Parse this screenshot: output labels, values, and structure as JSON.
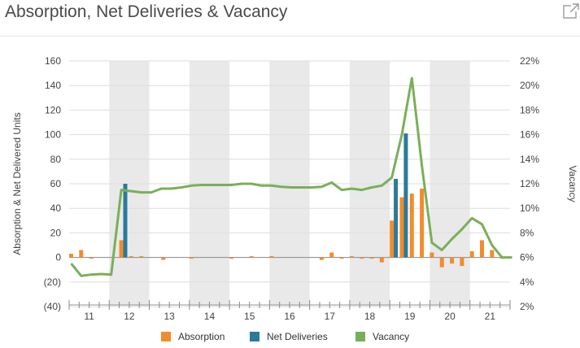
{
  "header": {
    "title": "Absorption, Net Deliveries & Vacancy",
    "open_icon": "external-link-icon"
  },
  "colors": {
    "absorption": "#f28c2c",
    "net_deliveries": "#2a7b9b",
    "vacancy": "#7aaf59",
    "band": "#e9e9e9",
    "grid": "#dedede",
    "axis_text": "#444444"
  },
  "chart_data": {
    "type": "bar",
    "categories": [
      "11",
      "12",
      "13",
      "14",
      "15",
      "16",
      "17",
      "18",
      "19",
      "20",
      "21"
    ],
    "shaded_periods": [
      "12",
      "14",
      "16",
      "18",
      "20"
    ],
    "y_left": {
      "label": "Absorption & Net Delivered Units",
      "ticks": [
        "160",
        "140",
        "120",
        "100",
        "80",
        "60",
        "40",
        "20",
        "0",
        "(20)",
        "(40)"
      ],
      "range": [
        -40,
        160
      ]
    },
    "y_right": {
      "label": "Vacancy",
      "ticks": [
        "22%",
        "20%",
        "18%",
        "16%",
        "14%",
        "12%",
        "10%",
        "8%",
        "6%",
        "4%",
        "2%"
      ],
      "range": [
        2,
        22
      ]
    },
    "grid": true,
    "legend_position": "bottom",
    "series": [
      {
        "name": "Absorption",
        "type": "bar",
        "axis": "left",
        "points": [
          {
            "t": 10.55,
            "v": 3
          },
          {
            "t": 10.8,
            "v": 6
          },
          {
            "t": 11.05,
            "v": -1
          },
          {
            "t": 11.8,
            "v": 14
          },
          {
            "t": 12.05,
            "v": 1
          },
          {
            "t": 12.3,
            "v": 1
          },
          {
            "t": 12.85,
            "v": -2
          },
          {
            "t": 13.55,
            "v": -1
          },
          {
            "t": 14.55,
            "v": -1
          },
          {
            "t": 15.05,
            "v": 1
          },
          {
            "t": 15.55,
            "v": 1
          },
          {
            "t": 16.8,
            "v": -2
          },
          {
            "t": 17.05,
            "v": 4
          },
          {
            "t": 17.3,
            "v": -1
          },
          {
            "t": 17.55,
            "v": 1
          },
          {
            "t": 17.8,
            "v": -1
          },
          {
            "t": 18.05,
            "v": -1
          },
          {
            "t": 18.3,
            "v": -4
          },
          {
            "t": 18.55,
            "v": 30
          },
          {
            "t": 18.8,
            "v": 49
          },
          {
            "t": 19.05,
            "v": 52
          },
          {
            "t": 19.3,
            "v": 56
          },
          {
            "t": 19.55,
            "v": 4
          },
          {
            "t": 19.8,
            "v": -8
          },
          {
            "t": 20.05,
            "v": -5
          },
          {
            "t": 20.3,
            "v": -7
          },
          {
            "t": 20.55,
            "v": 5
          },
          {
            "t": 20.8,
            "v": 14
          },
          {
            "t": 21.05,
            "v": 6
          },
          {
            "t": 21.3,
            "v": -1
          }
        ]
      },
      {
        "name": "Net Deliveries",
        "type": "bar",
        "axis": "left",
        "points": [
          {
            "t": 11.9,
            "v": 60
          },
          {
            "t": 18.65,
            "v": 64
          },
          {
            "t": 18.9,
            "v": 101
          }
        ]
      },
      {
        "name": "Vacancy",
        "type": "line",
        "axis": "right",
        "points": [
          {
            "t": 10.55,
            "v": 5.5
          },
          {
            "t": 10.8,
            "v": 4.5
          },
          {
            "t": 11.05,
            "v": 4.6
          },
          {
            "t": 11.3,
            "v": 4.65
          },
          {
            "t": 11.55,
            "v": 4.6
          },
          {
            "t": 11.8,
            "v": 11.5
          },
          {
            "t": 12.05,
            "v": 11.4
          },
          {
            "t": 12.3,
            "v": 11.3
          },
          {
            "t": 12.55,
            "v": 11.3
          },
          {
            "t": 12.8,
            "v": 11.6
          },
          {
            "t": 13.05,
            "v": 11.6
          },
          {
            "t": 13.3,
            "v": 11.7
          },
          {
            "t": 13.55,
            "v": 11.85
          },
          {
            "t": 13.8,
            "v": 11.9
          },
          {
            "t": 14.05,
            "v": 11.9
          },
          {
            "t": 14.3,
            "v": 11.9
          },
          {
            "t": 14.55,
            "v": 11.9
          },
          {
            "t": 14.8,
            "v": 12.0
          },
          {
            "t": 15.05,
            "v": 12.0
          },
          {
            "t": 15.3,
            "v": 11.85
          },
          {
            "t": 15.55,
            "v": 11.85
          },
          {
            "t": 15.8,
            "v": 11.75
          },
          {
            "t": 16.05,
            "v": 11.7
          },
          {
            "t": 16.3,
            "v": 11.7
          },
          {
            "t": 16.55,
            "v": 11.7
          },
          {
            "t": 16.8,
            "v": 11.75
          },
          {
            "t": 17.05,
            "v": 12.1
          },
          {
            "t": 17.3,
            "v": 11.5
          },
          {
            "t": 17.55,
            "v": 11.6
          },
          {
            "t": 17.8,
            "v": 11.5
          },
          {
            "t": 18.05,
            "v": 11.7
          },
          {
            "t": 18.3,
            "v": 11.85
          },
          {
            "t": 18.55,
            "v": 12.5
          },
          {
            "t": 18.8,
            "v": 16.0
          },
          {
            "t": 19.05,
            "v": 20.6
          },
          {
            "t": 19.3,
            "v": 13.5
          },
          {
            "t": 19.55,
            "v": 7.2
          },
          {
            "t": 19.8,
            "v": 6.6
          },
          {
            "t": 20.05,
            "v": 7.5
          },
          {
            "t": 20.3,
            "v": 8.3
          },
          {
            "t": 20.55,
            "v": 9.2
          },
          {
            "t": 20.8,
            "v": 8.7
          },
          {
            "t": 21.05,
            "v": 7.0
          },
          {
            "t": 21.3,
            "v": 6.0
          },
          {
            "t": 21.55,
            "v": 6.0
          }
        ]
      }
    ]
  }
}
